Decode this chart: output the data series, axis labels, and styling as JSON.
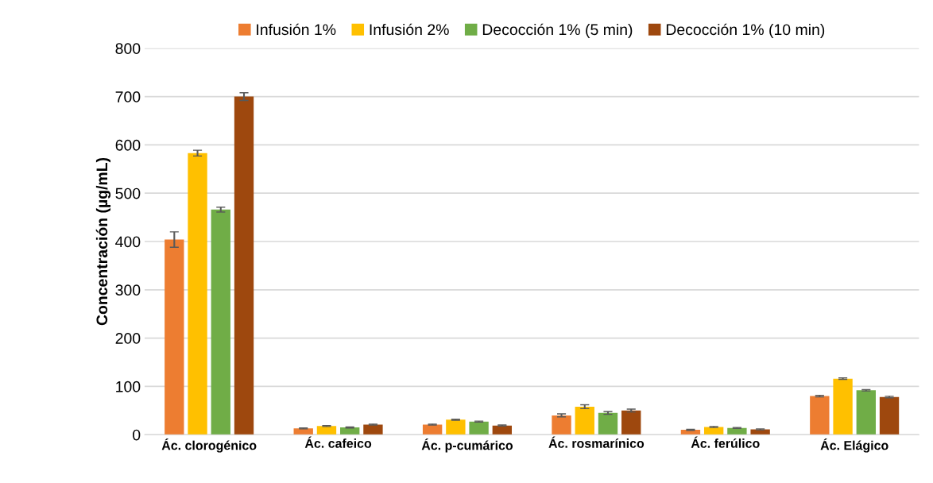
{
  "chart_data": {
    "type": "bar",
    "ylabel": "Concentración (µg/mL)",
    "categories": [
      "Ác. clorogénico",
      "Ác. cafeico",
      "Ác. p-cumárico",
      "Ác. rosmarínico",
      "Ác. ferúlico",
      "Ác. Elágico"
    ],
    "series": [
      {
        "name": "Infusión 1%",
        "color": "#ed7d31",
        "values": [
          404,
          13,
          21,
          40,
          10,
          80
        ],
        "errors": [
          16,
          1,
          1,
          3,
          1,
          1.5
        ]
      },
      {
        "name": "Infusión 2%",
        "color": "#ffc000",
        "values": [
          583,
          18,
          31,
          58,
          16,
          116
        ],
        "errors": [
          6,
          1,
          1,
          4,
          1,
          1.5
        ]
      },
      {
        "name": "Decocción 1% (5 min)",
        "color": "#70ad47",
        "values": [
          466,
          15,
          27,
          45,
          14,
          92
        ],
        "errors": [
          5,
          1,
          1,
          3,
          1,
          1.5
        ]
      },
      {
        "name": "Decocción 1% (10 min)",
        "color": "#9e480e",
        "values": [
          700,
          21,
          19,
          50,
          11,
          78
        ],
        "errors": [
          8,
          1,
          1,
          3,
          1,
          1.5
        ]
      }
    ],
    "ylim": [
      0,
      800
    ],
    "yticks": [
      0,
      100,
      200,
      300,
      400,
      500,
      600,
      700,
      800
    ],
    "grid": "y",
    "legend": "top"
  }
}
